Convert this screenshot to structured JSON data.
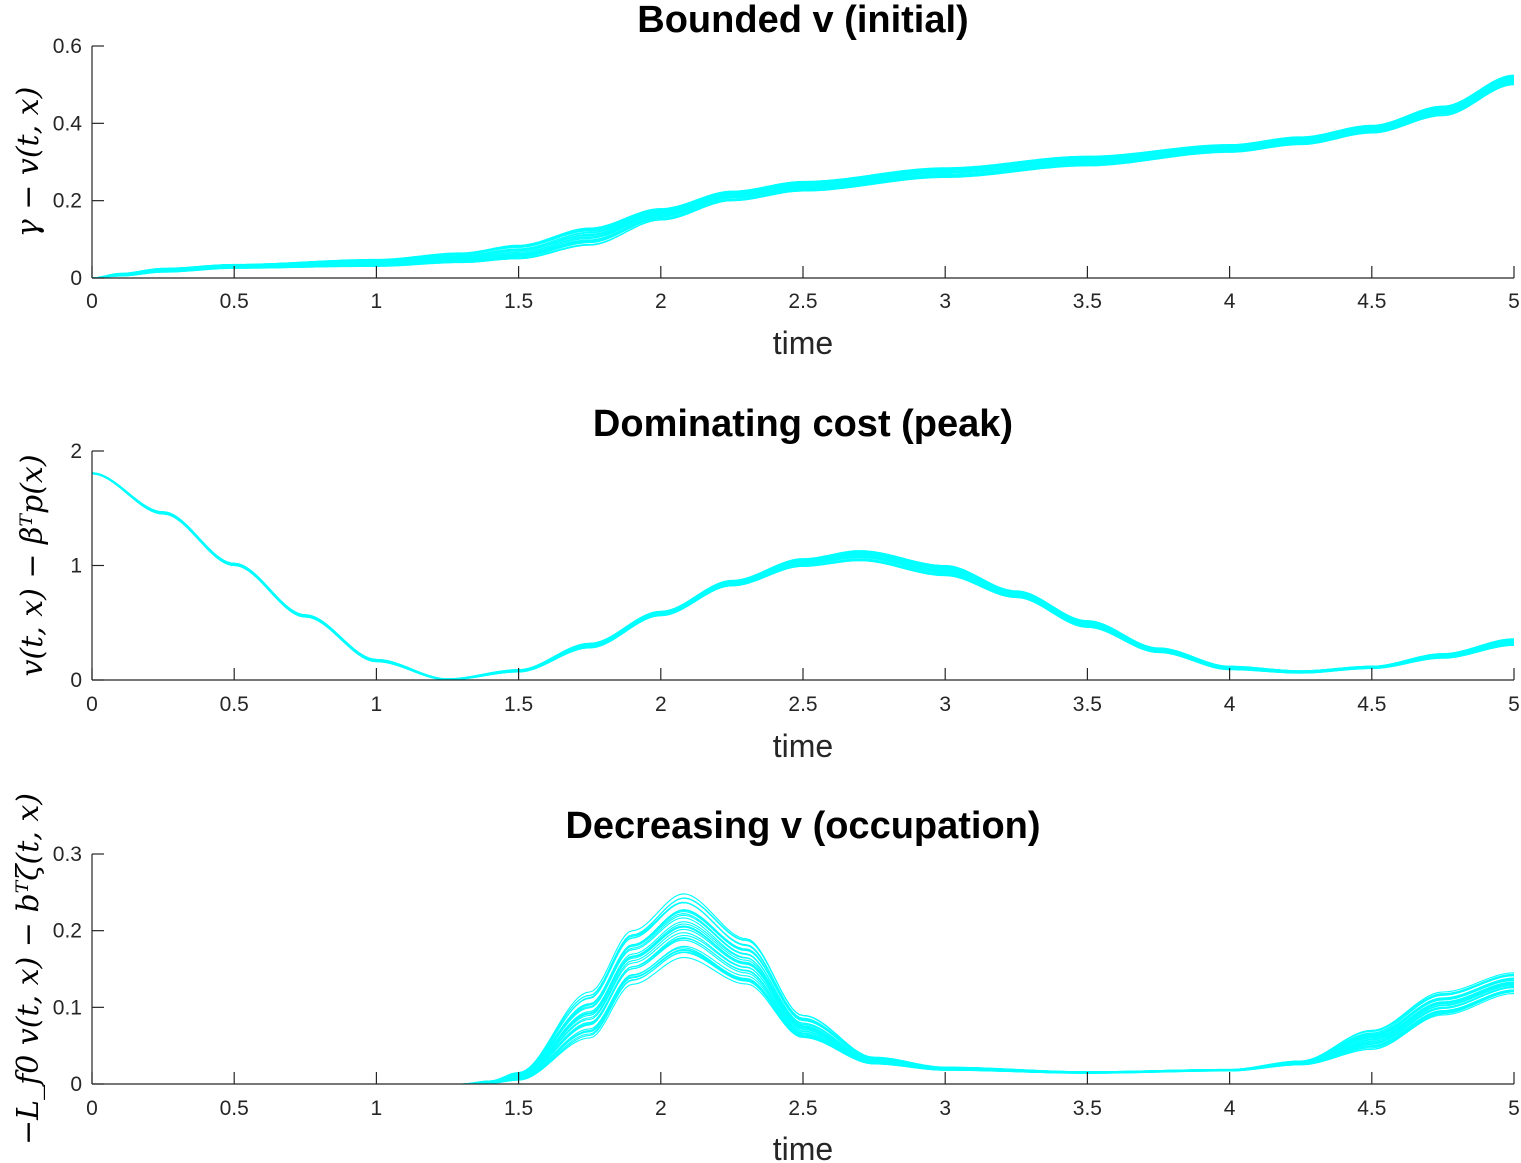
{
  "chart_data": [
    {
      "type": "line",
      "title": "Bounded v (initial)",
      "xlabel": "time",
      "ylabel": "γ − v(t, x)",
      "xlim": [
        0,
        5
      ],
      "ylim": [
        0,
        0.6
      ],
      "xticks": [
        "0",
        "0.5",
        "1",
        "1.5",
        "2",
        "2.5",
        "3",
        "3.5",
        "4",
        "4.5",
        "5"
      ],
      "yticks": [
        "0",
        "0.2",
        "0.4",
        "0.6"
      ],
      "grid": false,
      "color": "#00ffff",
      "num_traces": 30,
      "band": {
        "x": [
          0,
          0.1,
          0.25,
          0.5,
          1.0,
          1.3,
          1.5,
          1.75,
          2.0,
          2.25,
          2.5,
          3.0,
          3.5,
          4.0,
          4.25,
          4.5,
          4.75,
          5.0
        ],
        "lower": [
          0,
          0.005,
          0.015,
          0.025,
          0.03,
          0.04,
          0.05,
          0.085,
          0.15,
          0.2,
          0.225,
          0.26,
          0.29,
          0.325,
          0.345,
          0.375,
          0.42,
          0.5
        ],
        "upper": [
          0,
          0.012,
          0.025,
          0.035,
          0.048,
          0.065,
          0.085,
          0.13,
          0.18,
          0.225,
          0.25,
          0.285,
          0.315,
          0.345,
          0.365,
          0.395,
          0.445,
          0.525
        ]
      }
    },
    {
      "type": "line",
      "title": "Dominating cost (peak)",
      "xlabel": "time",
      "ylabel": "v(t, x) − βᵀp(x)",
      "xlim": [
        0,
        5
      ],
      "ylim": [
        0,
        2
      ],
      "xticks": [
        "0",
        "0.5",
        "1",
        "1.5",
        "2",
        "2.5",
        "3",
        "3.5",
        "4",
        "4.5",
        "5"
      ],
      "yticks": [
        "0",
        "1",
        "2"
      ],
      "grid": false,
      "color": "#00ffff",
      "num_traces": 30,
      "band": {
        "x": [
          0,
          0.25,
          0.5,
          0.75,
          1.0,
          1.25,
          1.5,
          1.75,
          2.0,
          2.25,
          2.5,
          2.7,
          3.0,
          3.25,
          3.5,
          3.75,
          4.0,
          4.25,
          4.5,
          4.75,
          5.0
        ],
        "lower": [
          1.8,
          1.45,
          1.0,
          0.55,
          0.16,
          0.0,
          0.07,
          0.28,
          0.56,
          0.82,
          0.99,
          1.04,
          0.91,
          0.72,
          0.46,
          0.24,
          0.09,
          0.06,
          0.1,
          0.19,
          0.3
        ],
        "upper": [
          1.81,
          1.47,
          1.02,
          0.57,
          0.18,
          0.01,
          0.09,
          0.32,
          0.6,
          0.87,
          1.06,
          1.13,
          1.0,
          0.78,
          0.52,
          0.28,
          0.12,
          0.08,
          0.12,
          0.23,
          0.36
        ]
      }
    },
    {
      "type": "line",
      "title": "Decreasing v (occupation)",
      "xlabel": "time",
      "ylabel": "−L_f0 v(t, x) − bᵀζ(t, x)",
      "xlim": [
        0,
        5
      ],
      "ylim": [
        0,
        0.3
      ],
      "xticks": [
        "0",
        "0.5",
        "1",
        "1.5",
        "2",
        "2.5",
        "3",
        "3.5",
        "4",
        "4.5",
        "5"
      ],
      "yticks": [
        "0",
        "0.1",
        "0.2",
        "0.3"
      ],
      "grid": false,
      "color": "#00ffff",
      "num_traces": 30,
      "band": {
        "x": [
          0,
          1.3,
          1.4,
          1.5,
          1.75,
          1.9,
          2.08,
          2.3,
          2.5,
          2.75,
          3.0,
          3.5,
          4.0,
          4.25,
          4.5,
          4.75,
          5.0
        ],
        "lower": [
          0,
          0,
          0.001,
          0.005,
          0.06,
          0.13,
          0.165,
          0.13,
          0.06,
          0.026,
          0.018,
          0.014,
          0.017,
          0.025,
          0.045,
          0.09,
          0.118
        ],
        "upper": [
          0,
          0,
          0.004,
          0.015,
          0.12,
          0.2,
          0.248,
          0.19,
          0.09,
          0.035,
          0.022,
          0.016,
          0.019,
          0.03,
          0.07,
          0.12,
          0.145
        ]
      }
    }
  ]
}
